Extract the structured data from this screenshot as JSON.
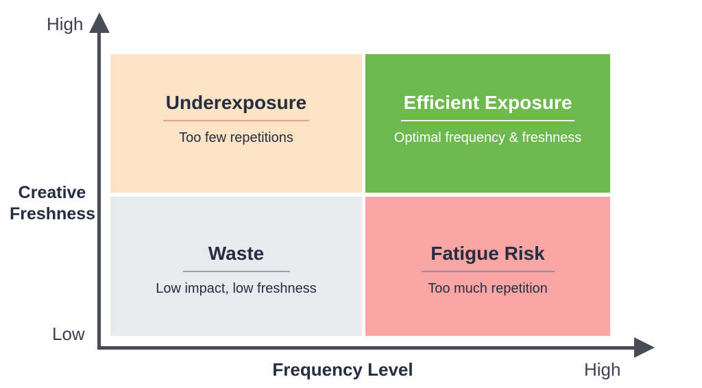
{
  "colors": {
    "axis": "#474c57",
    "label_text": "#3c414d",
    "title_text": "#262c41",
    "underexposure_bg": "#fce3c3",
    "underexposure_rule": "#e5a29b",
    "efficient_bg": "#6db950",
    "efficient_rule": "#ffffff",
    "efficient_text": "#ffffff",
    "waste_bg": "#e9eaed",
    "waste_rule": "#9aa0a6",
    "fatigue_bg": "#f9a6a4",
    "fatigue_rule": "#8e9297"
  },
  "y_axis": {
    "label": "Creative\nFreshness",
    "high": "High",
    "low": "Low"
  },
  "x_axis": {
    "label": "Frequency Level",
    "high": "High"
  },
  "quadrants": [
    {
      "id": "underexposure",
      "title": "Underexposure",
      "subtitle": "Too few repetitions"
    },
    {
      "id": "efficient-exposure",
      "title": "Efficient Exposure",
      "subtitle": "Optimal frequency & freshness"
    },
    {
      "id": "waste",
      "title": "Waste",
      "subtitle": "Low impact, low freshness"
    },
    {
      "id": "fatigue-risk",
      "title": "Fatigue Risk",
      "subtitle": "Too much repetition"
    }
  ]
}
